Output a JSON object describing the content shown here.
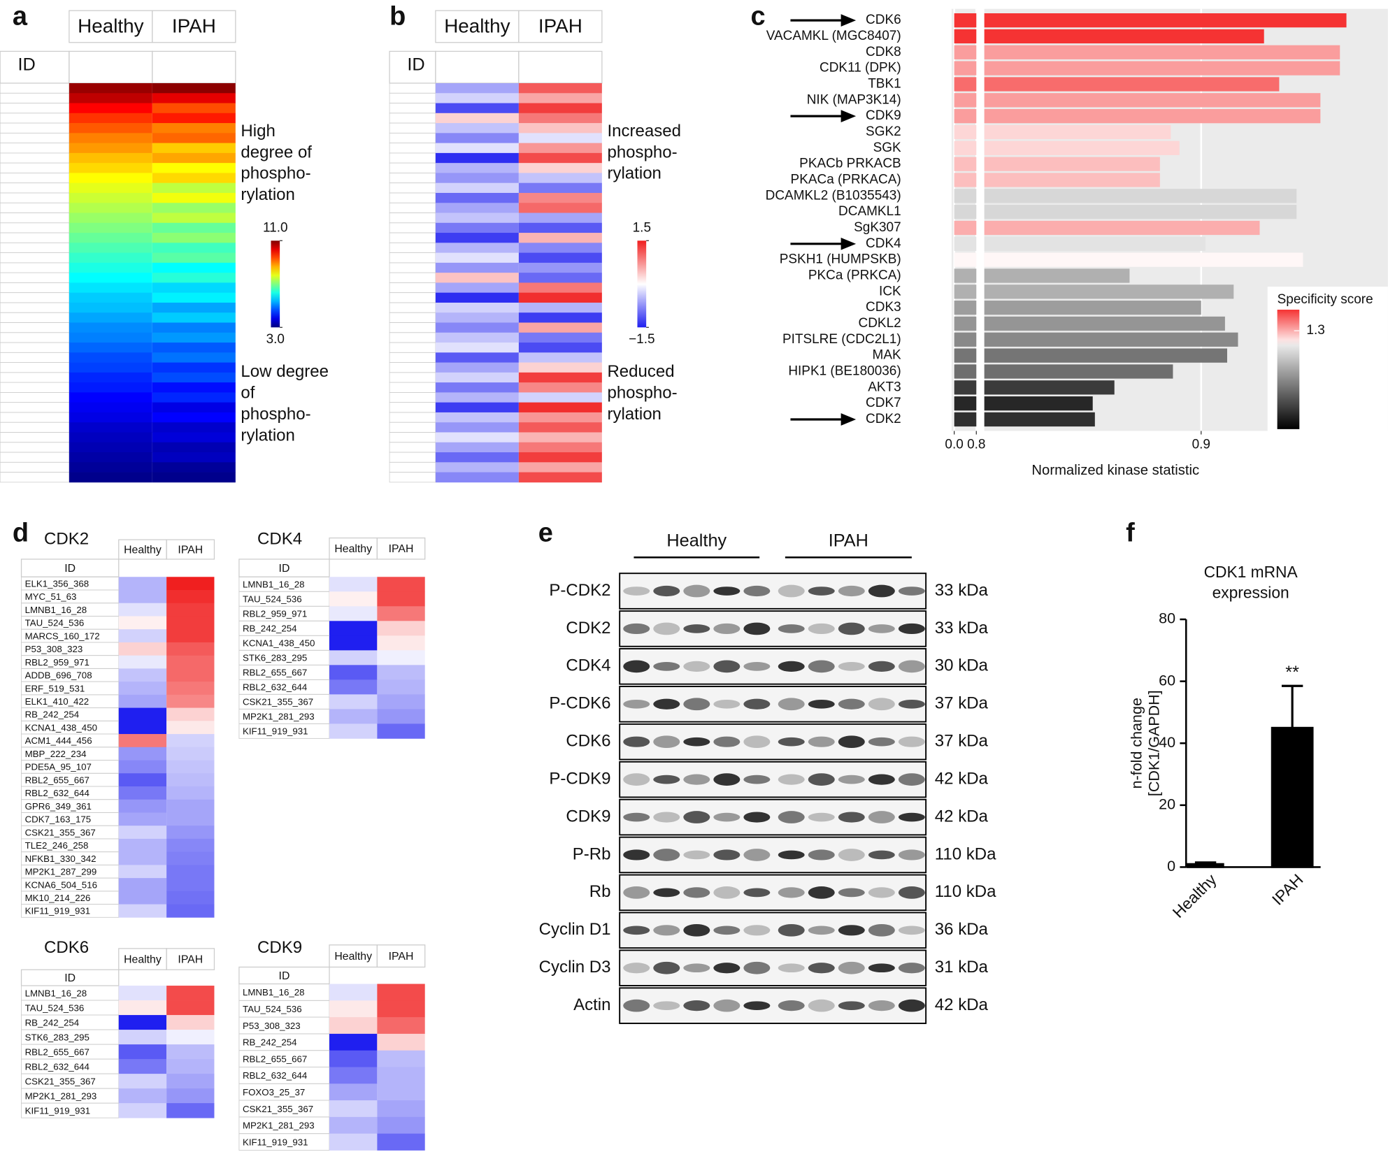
{
  "panel_labels": [
    "a",
    "b",
    "c",
    "d",
    "e",
    "f"
  ],
  "panel_a": {
    "id_header": "ID",
    "series": [
      {
        "name": "Healthy",
        "values": [
          10.8,
          10.5,
          10.0,
          9.6,
          9.3,
          9.0,
          8.8,
          8.5,
          8.3,
          8.0,
          7.8,
          7.6,
          7.4,
          7.2,
          7.0,
          6.8,
          6.6,
          6.4,
          6.2,
          6.0,
          5.8,
          5.6,
          5.5,
          5.3,
          5.1,
          5.0,
          4.8,
          4.6,
          4.5,
          4.3,
          4.2,
          4.0,
          3.9,
          3.8,
          3.6,
          3.5,
          3.4,
          3.3,
          3.2,
          3.1
        ]
      },
      {
        "name": "IPAH",
        "values": [
          10.9,
          10.2,
          9.4,
          9.8,
          9.0,
          9.2,
          8.4,
          8.7,
          8.0,
          8.3,
          7.5,
          7.9,
          7.2,
          7.5,
          6.8,
          7.1,
          6.5,
          6.7,
          6.0,
          6.3,
          5.7,
          5.9,
          5.3,
          5.6,
          5.0,
          5.2,
          4.7,
          4.9,
          4.4,
          4.6,
          4.1,
          4.3,
          3.8,
          4.0,
          3.6,
          3.7,
          3.4,
          3.5,
          3.2,
          3.1
        ]
      }
    ],
    "clim": [
      3.0,
      11.0
    ],
    "cticks": [
      {
        "value": 11.0,
        "label": "11.0"
      },
      {
        "value": 3.0,
        "label": "3.0"
      }
    ],
    "annotation_high": [
      "High",
      "degree of",
      "phospho-",
      "rylation"
    ],
    "annotation_low": [
      "Low degree",
      "of",
      "phospho-",
      "rylation"
    ]
  },
  "panel_b": {
    "id_header": "ID",
    "series": [
      {
        "name": "Healthy",
        "values": [
          -0.6,
          -0.3,
          -1.2,
          0.3,
          -0.4,
          -0.8,
          -0.2,
          -1.4,
          -0.5,
          -0.7,
          -0.3,
          -1.0,
          -0.6,
          -0.4,
          -0.9,
          -1.3,
          -0.5,
          -0.2,
          -0.7,
          0.4,
          -0.6,
          -1.4,
          -0.3,
          -0.5,
          -0.8,
          -0.4,
          -0.2,
          -1.1,
          -0.6,
          -0.3,
          -0.9,
          -0.5,
          -1.3,
          -0.4,
          -0.7,
          -0.2,
          -0.6,
          -1.0,
          -0.5,
          -0.8
        ]
      },
      {
        "name": "IPAH",
        "values": [
          1.1,
          0.6,
          1.3,
          0.9,
          0.4,
          -0.2,
          0.7,
          1.2,
          0.3,
          -0.4,
          -0.9,
          0.8,
          1.0,
          -0.6,
          -1.1,
          0.5,
          -0.8,
          -1.2,
          -0.7,
          -1.0,
          0.9,
          1.4,
          -0.5,
          -1.3,
          0.6,
          -0.9,
          -1.2,
          -0.4,
          0.3,
          1.3,
          0.8,
          -0.3,
          1.4,
          0.7,
          1.1,
          0.5,
          0.9,
          1.3,
          0.6,
          1.2
        ]
      }
    ],
    "clim": [
      -1.5,
      1.5
    ],
    "cticks": [
      1.5,
      {
        "value": -1.5,
        "label": "−1.5"
      }
    ],
    "annotation_high": [
      "Increased",
      "phospho-",
      "rylation"
    ],
    "annotation_low": [
      "Reduced",
      "phospho-",
      "rylation"
    ]
  },
  "chart_data": [
    {
      "type": "hbar",
      "x_label": "Normalized kinase statistic",
      "categories": [
        "CDK6",
        "VACAMKL (MGC8407)",
        "CDK8",
        "CDK11 (DPK)",
        "TBK1",
        "NIK (MAP3K14)",
        "CDK9",
        "SGK2",
        "SGK",
        "PKACb PRKACB",
        "PKACa (PRKACA)",
        "DCAMKL2 (B1035543)",
        "DCAMKL1",
        "SgK307",
        "CDK4",
        "PSKH1 (HUMPSKB)",
        "PKCa (PRKCA)",
        "ICK",
        "CDK3",
        "CDKL2",
        "PITSLRE (CDC2L1)",
        "MAK",
        "HIPK1 (BE180036)",
        "AKT3",
        "CDK7",
        "CDK2"
      ],
      "values": [
        0.967,
        0.929,
        0.964,
        0.964,
        0.936,
        0.955,
        0.955,
        0.886,
        0.89,
        0.881,
        0.881,
        0.944,
        0.944,
        0.927,
        0.902,
        0.947,
        0.867,
        0.915,
        0.9,
        0.911,
        0.917,
        0.912,
        0.887,
        0.86,
        0.85,
        0.851
      ],
      "specificity": [
        1.45,
        1.45,
        1.32,
        1.32,
        1.38,
        1.32,
        1.32,
        1.25,
        1.25,
        1.28,
        1.28,
        1.15,
        1.15,
        1.3,
        1.18,
        1.21,
        1.05,
        1.05,
        1.0,
        0.98,
        0.95,
        0.9,
        0.88,
        0.75,
        0.7,
        0.72
      ],
      "highlight": [
        true,
        false,
        false,
        false,
        false,
        false,
        true,
        false,
        false,
        false,
        false,
        false,
        false,
        false,
        true,
        false,
        false,
        false,
        false,
        false,
        false,
        false,
        false,
        false,
        false,
        true
      ],
      "xlim": [
        0,
        0.97
      ],
      "xticks": [
        {
          "value": 0,
          "label": "0.0"
        },
        0.8,
        0.9
      ],
      "axis_break": true,
      "grid": true,
      "legend_title": "Specificity score",
      "score_lim": [
        0.6,
        1.45
      ],
      "score_ticks": [
        1.3
      ]
    },
    {
      "type": "bar",
      "title": [
        "CDK1 mRNA",
        "expression"
      ],
      "y_label": [
        "n-fold change",
        "[CDK1/GAPDH]"
      ],
      "categories": [
        "Healthy",
        "IPAH"
      ],
      "values": [
        1,
        45
      ],
      "errors": [
        0.5,
        13.5
      ],
      "annotation": "**",
      "color": "#000000",
      "ylim": [
        0,
        80
      ],
      "yticks": [
        0,
        20,
        40,
        60,
        80
      ]
    }
  ],
  "panel_d": [
    {
      "title": "CDK2",
      "columns": [
        "Healthy",
        "IPAH"
      ],
      "id_header": "ID",
      "rows": [
        [
          "ELK1_356_368",
          -0.5,
          1.5
        ],
        [
          "MYC_51_63",
          -0.5,
          1.4
        ],
        [
          "LMNB1_16_28",
          -0.2,
          1.3
        ],
        [
          "TAU_524_536",
          0.1,
          1.3
        ],
        [
          "MARCS_160_172",
          -0.3,
          1.3
        ],
        [
          "P53_308_323",
          0.3,
          1.1
        ],
        [
          "RBL2_959_971",
          -0.15,
          1.0
        ],
        [
          "ADDB_696_708",
          -0.4,
          1.0
        ],
        [
          "ERF_519_531",
          -0.5,
          0.9
        ],
        [
          "ELK1_410_422",
          -0.6,
          0.8
        ],
        [
          "RB_242_254",
          -1.5,
          0.3
        ],
        [
          "KCNA1_438_450",
          -1.5,
          0.15
        ],
        [
          "ACM1_444_456",
          0.9,
          -0.3
        ],
        [
          "MBP_222_234",
          -0.7,
          -0.35
        ],
        [
          "PDE5A_95_107",
          -0.8,
          -0.4
        ],
        [
          "RBL2_655_667",
          -1.1,
          -0.45
        ],
        [
          "RBL2_632_644",
          -0.9,
          -0.5
        ],
        [
          "GPR6_349_361",
          -0.7,
          -0.6
        ],
        [
          "CDK7_163_175",
          -0.6,
          -0.6
        ],
        [
          "CSK21_355_367",
          -0.3,
          -0.7
        ],
        [
          "TLE2_246_258",
          -0.5,
          -0.8
        ],
        [
          "NFKB1_330_342",
          -0.5,
          -0.85
        ],
        [
          "MP2K1_287_299",
          -0.3,
          -0.9
        ],
        [
          "KCNA6_504_516",
          -0.6,
          -0.9
        ],
        [
          "MK10_214_226",
          -0.6,
          -0.95
        ],
        [
          "KIF11_919_931",
          -0.3,
          -1.0
        ]
      ]
    },
    {
      "title": "CDK4",
      "columns": [
        "Healthy",
        "IPAH"
      ],
      "id_header": "ID",
      "rows": [
        [
          "LMNB1_16_28",
          -0.2,
          1.2
        ],
        [
          "TAU_524_536",
          0.1,
          1.2
        ],
        [
          "RBL2_959_971",
          -0.15,
          0.9
        ],
        [
          "RB_242_254",
          -1.5,
          0.3
        ],
        [
          "KCNA1_438_450",
          -1.5,
          0.15
        ],
        [
          "STK6_283_295",
          -0.3,
          -0.1
        ],
        [
          "RBL2_655_667",
          -1.1,
          -0.45
        ],
        [
          "RBL2_632_644",
          -0.9,
          -0.5
        ],
        [
          "CSK21_355_367",
          -0.3,
          -0.6
        ],
        [
          "MP2K1_281_293",
          -0.5,
          -0.7
        ],
        [
          "KIF11_919_931",
          -0.3,
          -1.0
        ]
      ]
    },
    {
      "title": "CDK6",
      "columns": [
        "Healthy",
        "IPAH"
      ],
      "id_header": "ID",
      "rows": [
        [
          "LMNB1_16_28",
          -0.2,
          1.2
        ],
        [
          "TAU_524_536",
          0.15,
          1.2
        ],
        [
          "RB_242_254",
          -1.5,
          0.3
        ],
        [
          "STK6_283_295",
          -0.3,
          -0.1
        ],
        [
          "RBL2_655_667",
          -1.1,
          -0.45
        ],
        [
          "RBL2_632_644",
          -0.9,
          -0.5
        ],
        [
          "CSK21_355_367",
          -0.3,
          -0.6
        ],
        [
          "MP2K1_281_293",
          -0.5,
          -0.7
        ],
        [
          "KIF11_919_931",
          -0.3,
          -1.0
        ]
      ]
    },
    {
      "title": "CDK9",
      "columns": [
        "Healthy",
        "IPAH"
      ],
      "id_header": "ID",
      "rows": [
        [
          "LMNB1_16_28",
          -0.2,
          1.2
        ],
        [
          "TAU_524_536",
          0.15,
          1.2
        ],
        [
          "P53_308_323",
          0.3,
          1.0
        ],
        [
          "RB_242_254",
          -1.5,
          0.3
        ],
        [
          "RBL2_655_667",
          -1.1,
          -0.45
        ],
        [
          "RBL2_632_644",
          -0.9,
          -0.5
        ],
        [
          "FOXO3_25_37",
          -0.6,
          -0.5
        ],
        [
          "CSK21_355_367",
          -0.3,
          -0.6
        ],
        [
          "MP2K1_281_293",
          -0.5,
          -0.7
        ],
        [
          "KIF11_919_931",
          -0.3,
          -1.0
        ]
      ]
    }
  ],
  "panel_e": {
    "groups": [
      "Healthy",
      "IPAH"
    ],
    "blots": [
      [
        "P-CDK2",
        "33 kDa"
      ],
      [
        "CDK2",
        "33 kDa"
      ],
      [
        "CDK4",
        "30 kDa"
      ],
      [
        "P-CDK6",
        "37 kDa"
      ],
      [
        "CDK6",
        "37 kDa"
      ],
      [
        "P-CDK9",
        "42 kDa"
      ],
      [
        "CDK9",
        "42 kDa"
      ],
      [
        "P-Rb",
        "110 kDa"
      ],
      [
        "Rb",
        "110 kDa"
      ],
      [
        "Cyclin D1",
        "36 kDa"
      ],
      [
        "Cyclin D3",
        "31 kDa"
      ],
      [
        "Actin",
        "42 kDa"
      ]
    ]
  }
}
